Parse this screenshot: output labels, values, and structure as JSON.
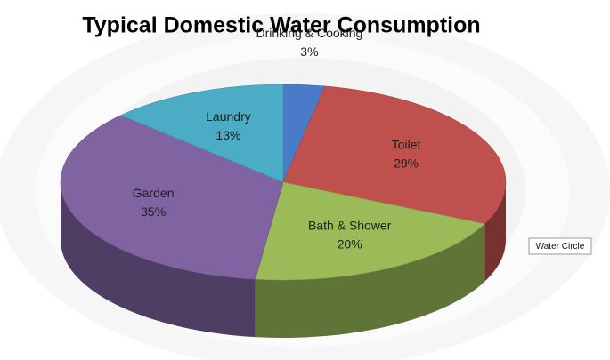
{
  "chart_data": {
    "type": "pie3d",
    "title": "Typical Domestic Water Consumption",
    "categories": [
      "Drinking & Cooking",
      "Toilet",
      "Bath & Shower",
      "Garden",
      "Laundry"
    ],
    "series": [
      {
        "name": "Water Circle",
        "values": [
          3,
          29,
          20,
          35,
          13
        ],
        "value_labels": [
          "3%",
          "29%",
          "20%",
          "35%",
          "13%"
        ],
        "colors": [
          "#4a7bc8",
          "#c0504d",
          "#9bbb59",
          "#8064a2",
          "#4bacc6"
        ]
      }
    ]
  }
}
